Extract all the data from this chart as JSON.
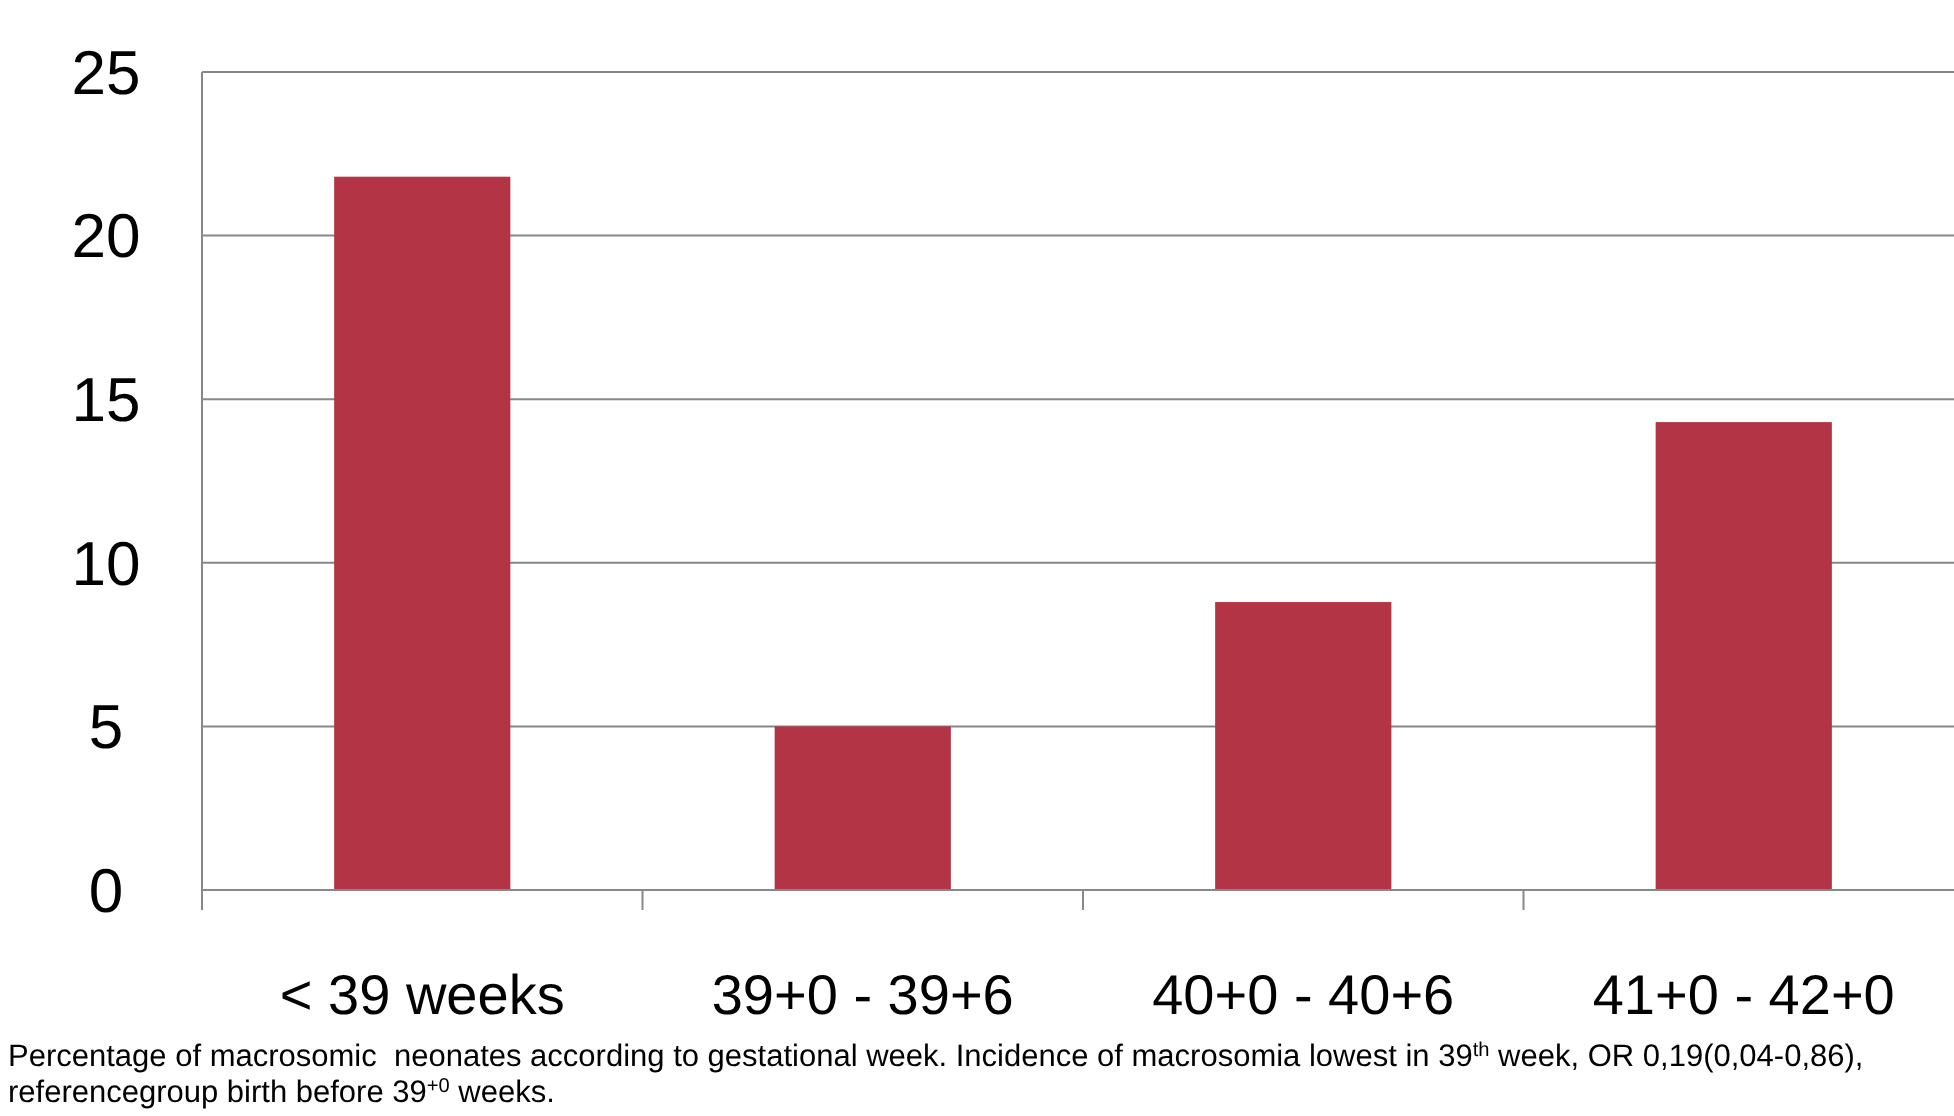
{
  "chart_data": {
    "type": "bar",
    "categories": [
      "< 39 weeks",
      "39+0 - 39+6",
      "40+0 - 40+6",
      "41+0 - 42+0"
    ],
    "values": [
      21.8,
      5.0,
      8.8,
      14.3
    ],
    "color": "#b33444",
    "ylim": [
      0,
      25
    ],
    "yticks": [
      0,
      5,
      10,
      15,
      20,
      25
    ],
    "grid": "y",
    "annotations": [
      "Percentage of macrosomic  neonates according to gestational week. Incidence of macrosomia lowest in 39$^{th}$ week, OR 0,19(0,04-0,86), referencegroup birth before 39$^{+0}$ weeks."
    ]
  }
}
